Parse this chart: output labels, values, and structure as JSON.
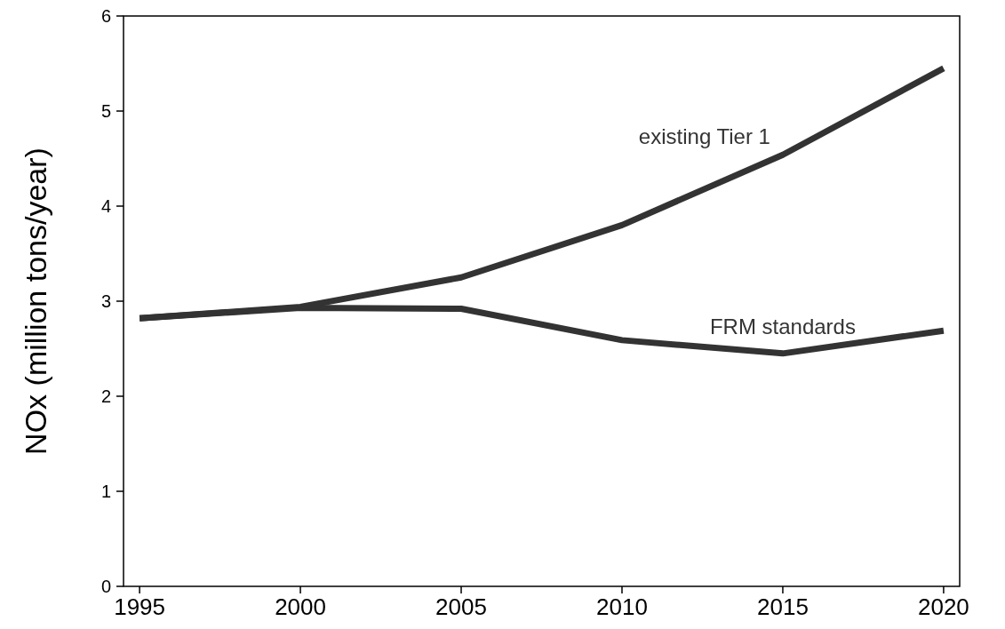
{
  "chart_data": {
    "type": "line",
    "ylabel": "NOx (million tons/year)",
    "x": [
      1995,
      2000,
      2005,
      2010,
      2015,
      2020
    ],
    "series": [
      {
        "name": "existing Tier 1",
        "color": "#333333",
        "values": [
          2.82,
          2.94,
          3.25,
          3.8,
          4.54,
          5.45
        ]
      },
      {
        "name": "FRM standards",
        "color": "#333333",
        "values": [
          2.82,
          2.93,
          2.92,
          2.59,
          2.45,
          2.69
        ]
      }
    ],
    "xlim": [
      1994.5,
      2020.5
    ],
    "ylim": [
      0,
      6
    ],
    "xticks": [
      1995,
      2000,
      2005,
      2010,
      2015,
      2020
    ],
    "yticks": [
      0,
      1,
      2,
      3,
      4,
      5,
      6
    ],
    "grid": false,
    "legend": false,
    "marker": "none",
    "line_style": "solid"
  }
}
